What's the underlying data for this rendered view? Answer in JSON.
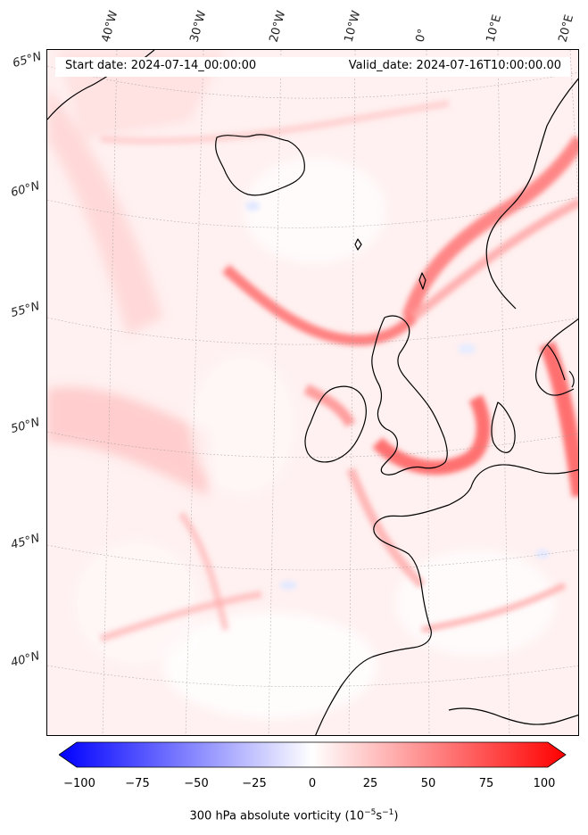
{
  "map": {
    "start_date": "Start date: 2024-07-14_00:00:00",
    "valid_date": "Valid_date: 2024-07-16T10:00:00.00",
    "lon_labels": [
      "40°W",
      "30°W",
      "20°W",
      "10°W",
      "0°",
      "10°E",
      "20°E"
    ],
    "lat_labels": [
      "65°N",
      "60°N",
      "55°N",
      "50°N",
      "45°N",
      "40°N"
    ],
    "field_colors": {
      "low": "#0000ff",
      "zero": "#ffffff",
      "high": "#ff0000",
      "coast": "#000000"
    }
  },
  "colorbar": {
    "ticks": [
      "−100",
      "−75",
      "−50",
      "−25",
      "0",
      "25",
      "50",
      "75",
      "100"
    ],
    "range": [
      -100,
      100
    ],
    "label": "300 hPa absolute vorticity (10",
    "label_exp1": "−5",
    "label_mid": "s",
    "label_exp2": "−1",
    "label_end": ")"
  }
}
